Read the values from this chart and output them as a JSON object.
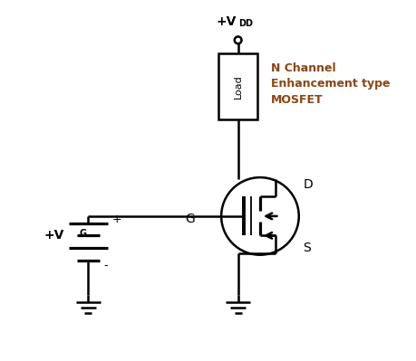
{
  "bg_color": "#ffffff",
  "line_color": "#000000",
  "annotation_color": "#8B4513",
  "load_label": "Load",
  "label_D": "D",
  "label_G": "G",
  "label_S": "S",
  "nchan_line1": "N Channel",
  "nchan_line2": "Enhancement type",
  "nchan_line3": "MOSFET",
  "plus_label": "+",
  "minus_label": "-",
  "figsize": [
    4.6,
    3.99
  ],
  "dpi": 100
}
